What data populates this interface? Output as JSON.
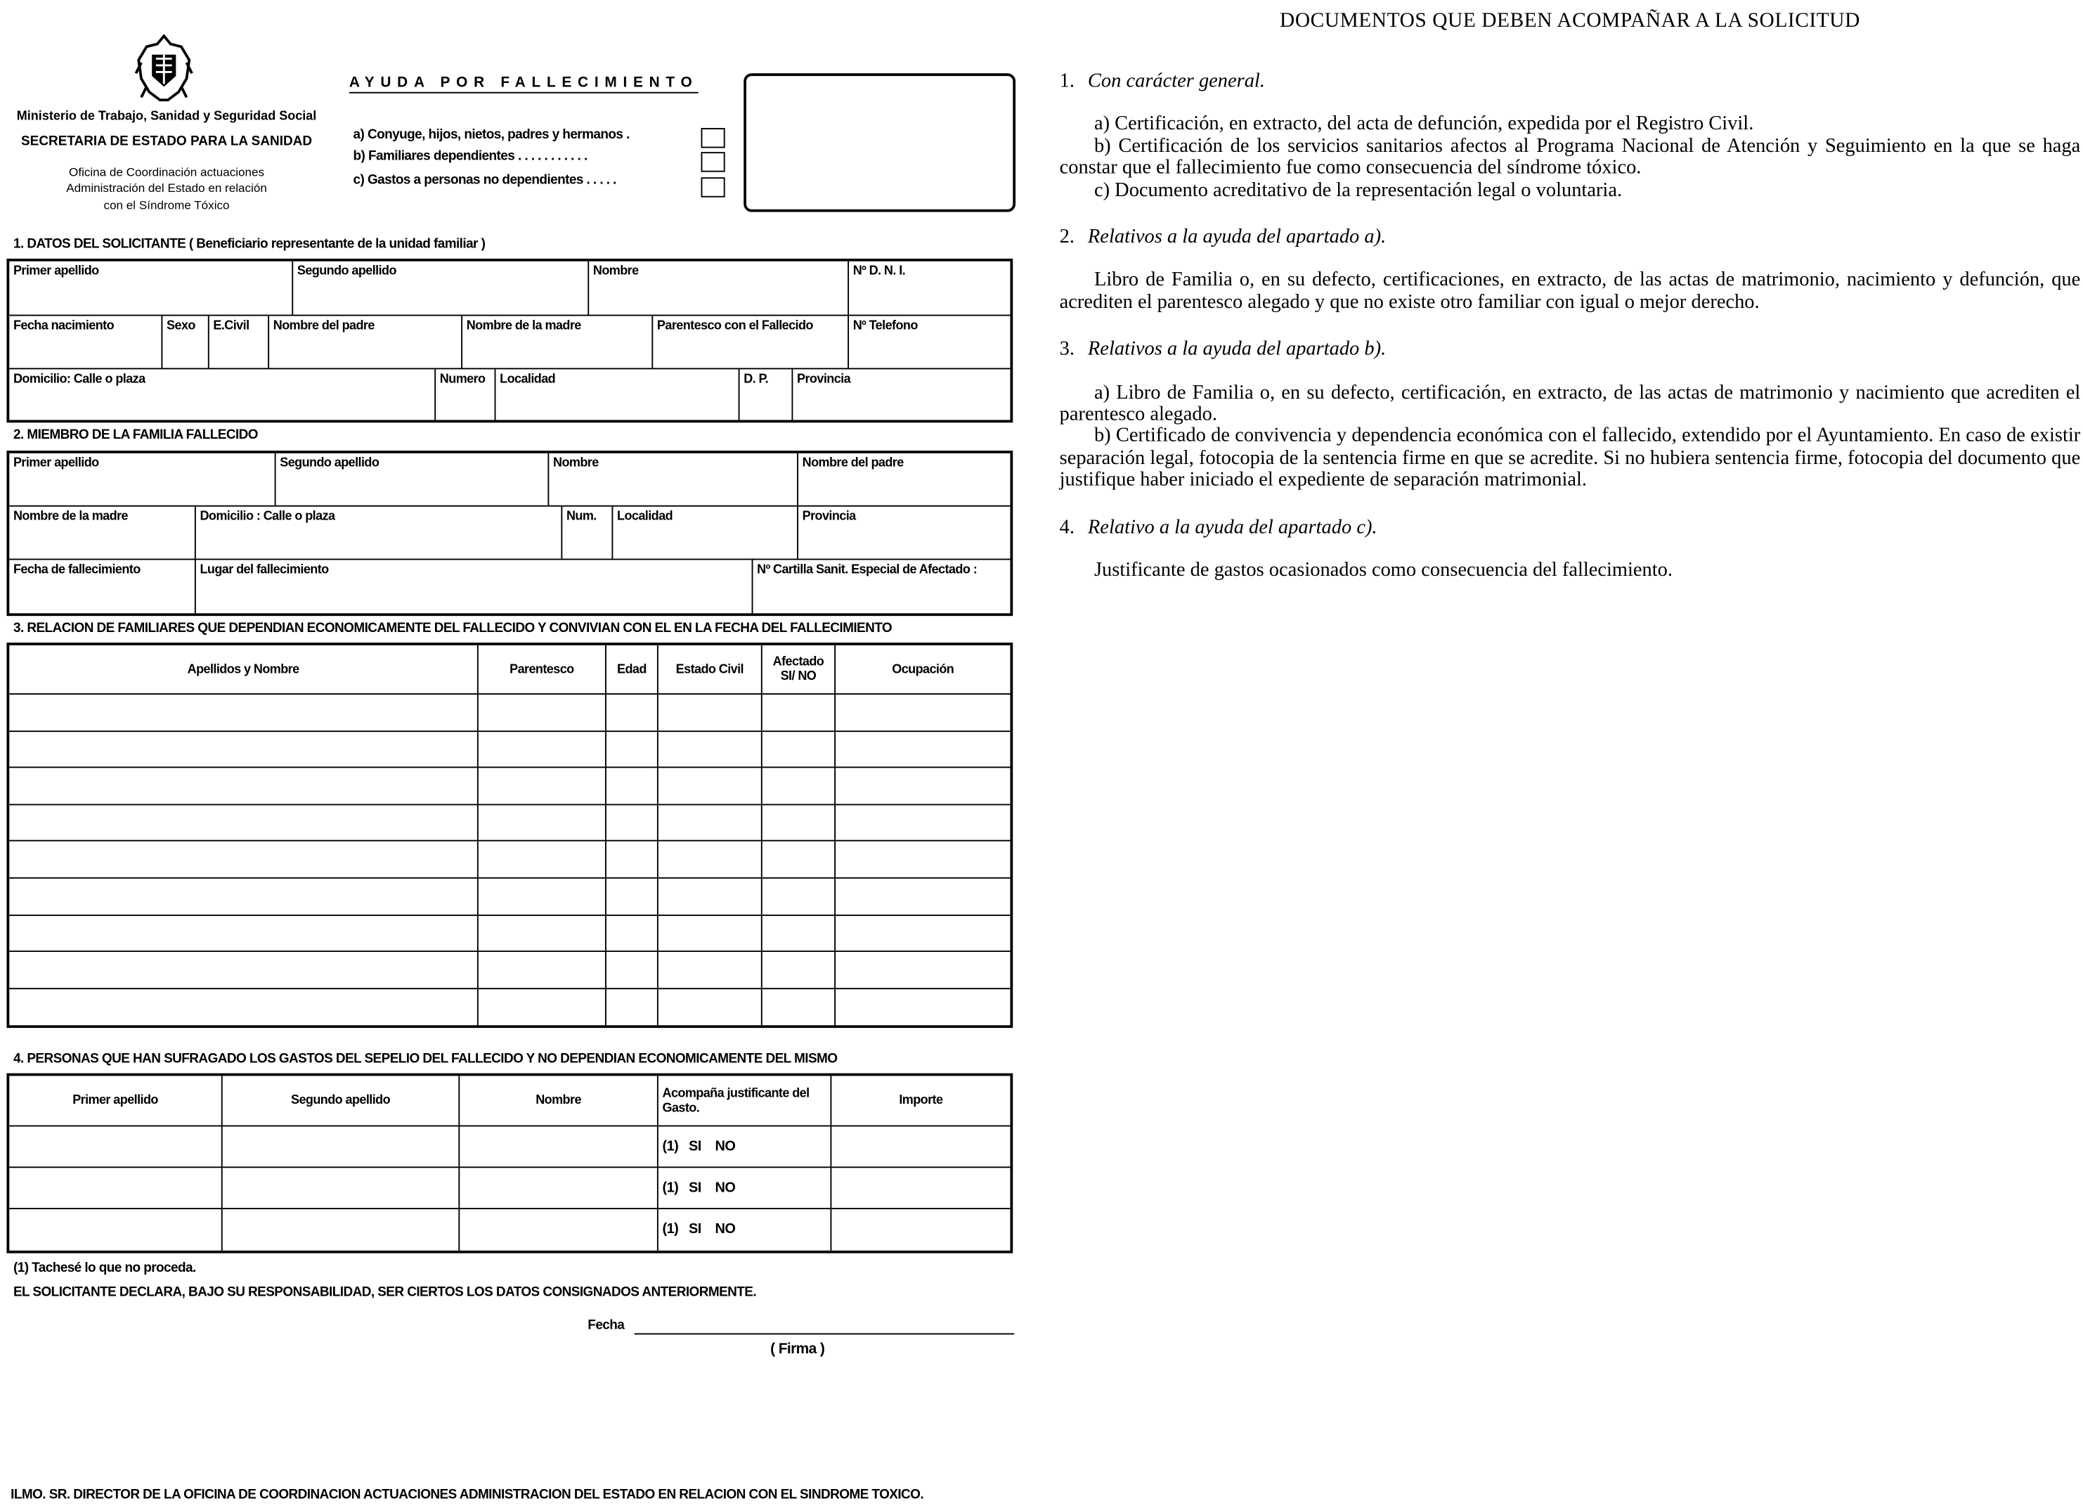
{
  "header": {
    "ministry": "Ministerio de Trabajo, Sanidad y Seguridad Social",
    "secretaria": "SECRETARIA DE ESTADO PARA LA SANIDAD",
    "office_lines": [
      "Oficina de Coordinación actuaciones",
      "Administración del Estado en relación",
      "con el Síndrome Tóxico"
    ],
    "emblem_icon": "coat-of-arms-emblem",
    "form_title": "AYUDA POR FALLECIMIENTO",
    "options": [
      "a) Conyuge, hijos, nietos, padres y hermanos .",
      "b) Familiares dependientes . . . . . . . . . . .",
      "c) Gastos a personas no dependientes . . . . ."
    ]
  },
  "section1": {
    "title": "1. DATOS DEL SOLICITANTE ( Beneficiario representante de la unidad familiar )",
    "rows": [
      [
        "Primer apellido",
        "Segundo apellido",
        "Nombre",
        "Nº D. N. I."
      ],
      [
        "Fecha nacimiento",
        "Sexo",
        "E.Civil",
        "Nombre del padre",
        "Nombre de la madre",
        "Parentesco con el Fallecido",
        "Nº Telefono"
      ],
      [
        "Domicilio: Calle o plaza",
        "Numero",
        "Localidad",
        "D. P.",
        "Provincia"
      ]
    ]
  },
  "section2": {
    "title": "2. MIEMBRO DE LA FAMILIA FALLECIDO",
    "rows": [
      [
        "Primer apellido",
        "Segundo apellido",
        "Nombre",
        "Nombre del padre"
      ],
      [
        "Nombre de la madre",
        "Domicilio : Calle o plaza",
        "Num.",
        "Localidad",
        "Provincia"
      ],
      [
        "Fecha de fallecimiento",
        "Lugar del fallecimiento",
        "Nº Cartilla Sanit. Especial de Afectado :"
      ]
    ]
  },
  "section3": {
    "title": "3. RELACION DE FAMILIARES QUE DEPENDIAN ECONOMICAMENTE DEL FALLECIDO Y CONVIVIAN CON EL EN LA FECHA DEL FALLECIMIENTO",
    "headers": [
      "Apellidos y Nombre",
      "Parentesco",
      "Edad",
      "Estado Civil",
      "Afectado SI/ NO",
      "Ocupación"
    ],
    "empty_rows": 9
  },
  "section4": {
    "title": "4. PERSONAS QUE HAN SUFRAGADO LOS GASTOS DEL SEPELIO DEL FALLECIDO Y NO DEPENDIAN ECONOMICAMENTE DEL MISMO",
    "headers": [
      "Primer apellido",
      "Segundo apellido",
      "Nombre",
      "Acompaña justificante del Gasto.",
      "Importe"
    ],
    "rows": [
      [
        "",
        "",
        "",
        "(1)   SI    NO",
        ""
      ],
      [
        "",
        "",
        "",
        "(1)   SI    NO",
        ""
      ],
      [
        "",
        "",
        "",
        "(1)   SI    NO",
        ""
      ]
    ]
  },
  "footer": {
    "footnote": "(1) Tachesé lo que no proceda.",
    "declaration": "EL SOLICITANTE DECLARA, BAJO SU RESPONSABILIDAD, SER CIERTOS LOS DATOS CONSIGNADOS ANTERIORMENTE.",
    "fecha_label": "Fecha",
    "firma_label": "( Firma )",
    "addressee": "ILMO. SR. DIRECTOR DE LA OFICINA DE COORDINACION ACTUACIONES ADMINISTRACION DEL ESTADO EN RELACION CON EL SINDROME TOXICO."
  },
  "documents": {
    "title": "DOCUMENTOS QUE DEBEN ACOMPAÑAR A LA SOLICITUD",
    "sections": [
      {
        "num": "1.",
        "heading": "Con carácter general.",
        "paragraphs": [
          "a)  Certificación, en extracto, del acta de defunción, expedida por el Registro Civil.",
          "b)  Certificación de los servicios sanitarios afectos al Programa Nacional de Atención y Seguimiento en la que se haga constar que el fallecimiento fue como consecuencia del síndrome tóxico.",
          "c)  Documento acreditativo de la representación legal o voluntaria."
        ]
      },
      {
        "num": "2.",
        "heading": "Relativos a la ayuda del apartado a).",
        "paragraphs": [
          "Libro de Familia o, en su defecto, certificaciones, en extracto, de las actas de matrimonio, nacimiento y defunción, que acrediten el parentesco alegado y que no existe otro familiar con igual o mejor derecho."
        ]
      },
      {
        "num": "3.",
        "heading": "Relativos a la ayuda del apartado b).",
        "paragraphs": [
          "a)  Libro de Familia o, en su defecto, certificación, en extracto, de las actas de matrimonio y nacimiento que acrediten el parentesco alegado.",
          "b)  Certificado de convivencia y dependencia económica con el fallecido, extendido por el Ayuntamiento. En caso de existir separación legal, fotocopia de la sentencia firme en que se acredite. Si no hubiera sentencia firme, fotocopia del documento que justifique haber iniciado el expediente de separación matrimonial."
        ]
      },
      {
        "num": "4.",
        "heading": "Relativo a la ayuda del apartado c).",
        "paragraphs": [
          "Justificante de gastos ocasionados como consecuencia del fallecimiento."
        ]
      }
    ]
  }
}
